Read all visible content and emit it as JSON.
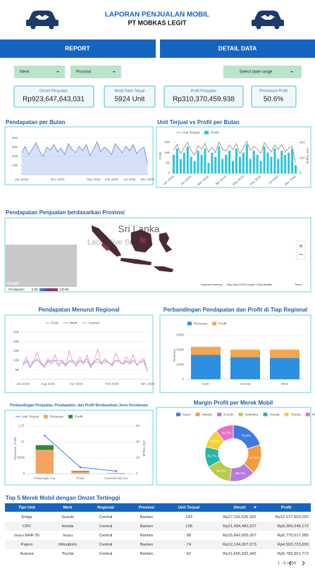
{
  "header": {
    "title": "LAPORAN PENJUALAN MOBIL",
    "subtitle": "PT MOBKAS LEGIT"
  },
  "tabs": [
    "REPORT",
    "DETAIL DATA"
  ],
  "filters": [
    "Merk",
    "Provinsi",
    "Select date range"
  ],
  "kpis": [
    {
      "label": "Omzet Penjualan",
      "value": "Rp923,647,643,031"
    },
    {
      "label": "Mobil Telah Terjual",
      "value": "5924 Unit"
    },
    {
      "label": "Profit Penjualan",
      "value": "Rp310,370,459,938"
    },
    {
      "label": "Persentase Profit",
      "value": "50.6%"
    }
  ],
  "map": {
    "title": "Pendapatan Penjualan berdasarkan Provinsi",
    "labels": [
      "Sri Lanka",
      "Laccadive Sea"
    ],
    "legend_label": "Pendapatan",
    "legend_min": "5.8B",
    "legend_max": "133.9B",
    "credits": [
      "Google",
      "Keyboard shortcuts",
      "Map Data ©2020 Google, TMap Mobility",
      "Terms"
    ]
  },
  "chart_data": [
    {
      "type": "area",
      "title": "Pendapatan per Bulan",
      "categories": [
        "Jan 2018",
        null,
        null,
        null,
        null,
        null,
        null,
        null,
        null,
        null,
        "Nov 2018",
        null,
        null,
        null,
        null,
        null,
        null,
        null,
        null,
        null,
        "Sep 2019",
        null,
        null,
        null,
        null,
        "Feb 2020",
        null,
        null,
        null,
        null,
        "Jul 2020",
        null,
        null,
        null,
        null,
        "Dec 2020"
      ],
      "values": [
        24,
        31,
        22,
        28,
        35,
        26,
        20,
        30,
        27,
        33,
        25,
        29,
        22,
        34,
        28,
        24,
        31,
        26,
        33,
        21,
        28,
        36,
        25,
        30,
        27,
        22,
        34,
        29,
        24,
        31,
        26,
        33,
        23,
        28,
        30,
        12
      ],
      "color": "#7b97ec",
      "ylim": [
        0,
        46
      ],
      "yticks": [
        {
          "value": 10,
          "label": "10B"
        },
        {
          "value": 20,
          "label": "20B"
        },
        {
          "value": 30,
          "label": "30B"
        },
        {
          "value": 40,
          "label": "40B"
        }
      ],
      "grid": true
    },
    {
      "type": "combo",
      "title": "Unit Terjual vs Profit per Bulan",
      "categories": [
        "Jan 2018",
        null,
        null,
        null,
        null,
        "Jun 2018",
        null,
        null,
        null,
        null,
        "Nov 2018",
        null,
        null,
        null,
        null,
        "Apr 2019",
        null,
        null,
        null,
        null,
        "Sep 2019",
        null,
        null,
        null,
        null,
        "Feb 2020",
        null,
        null,
        null,
        null,
        "Jul 2020",
        null,
        null,
        null,
        null,
        "Dec 2020"
      ],
      "series": [
        {
          "name": "Unit Terjual",
          "color": "#9e9e9e",
          "mark": "line",
          "axis": "y2",
          "values": [
            150,
            190,
            130,
            170,
            200,
            150,
            120,
            180,
            160,
            195,
            140,
            170,
            135,
            205,
            160,
            145,
            185,
            155,
            195,
            130,
            165,
            210,
            150,
            175,
            160,
            130,
            200,
            170,
            140,
            185,
            155,
            190,
            140,
            165,
            175,
            70
          ]
        },
        {
          "name": "Profit",
          "color": "#26c6da",
          "mark": "bar",
          "values": [
            9,
            12,
            7,
            10,
            13,
            8,
            6,
            11,
            9,
            12,
            5,
            10,
            8,
            13,
            7,
            9,
            11,
            6,
            12,
            8,
            10,
            14,
            7,
            11,
            9,
            6,
            13,
            10,
            8,
            12,
            7,
            11,
            9,
            10,
            12,
            4
          ]
        }
      ],
      "ylim": [
        0,
        17
      ],
      "yticks": [
        0,
        {
          "value": 5,
          "label": "5B"
        },
        {
          "value": 10,
          "label": "10B"
        },
        {
          "value": 15,
          "label": "15B"
        }
      ],
      "y2lim": [
        0,
        230
      ],
      "y2ticks": [
        0,
        100,
        200
      ],
      "ylabel": "Profit",
      "y2label": "Unit Terjual",
      "grid": true
    },
    {
      "type": "line",
      "title": "Pendapatan Menurut Regional",
      "categories": [
        "Jan 2018",
        null,
        null,
        null,
        null,
        null,
        null,
        "Aug 2018",
        null,
        null,
        null,
        null,
        null,
        null,
        null,
        "Apr 2019",
        null,
        null,
        null,
        null,
        null,
        null,
        null,
        null,
        null,
        "Feb 2020",
        null,
        null,
        null,
        null,
        null,
        null,
        null,
        null,
        null,
        "Dec 2020"
      ],
      "series": [
        {
          "name": "East",
          "color": "#ef8f9f",
          "values": [
            8,
            12,
            7,
            10,
            14,
            9,
            6,
            11,
            9,
            13,
            8,
            10,
            7,
            15,
            9,
            8,
            12,
            8,
            13,
            7,
            10,
            16,
            8,
            11,
            9,
            7,
            14,
            10,
            8,
            12,
            9,
            13,
            7,
            10,
            11,
            4
          ]
        },
        {
          "name": "West",
          "color": "#8f9fe0",
          "values": [
            7,
            10,
            6,
            9,
            11,
            8,
            7,
            10,
            8,
            10,
            7,
            9,
            7,
            10,
            9,
            7,
            10,
            9,
            11,
            6,
            9,
            11,
            8,
            9,
            9,
            7,
            10,
            9,
            8,
            10,
            8,
            10,
            8,
            9,
            10,
            4
          ]
        },
        {
          "name": "Central",
          "color": "#c992d8",
          "values": [
            9,
            9,
            9,
            9,
            10,
            9,
            7,
            9,
            10,
            10,
            10,
            10,
            8,
            9,
            10,
            9,
            9,
            9,
            9,
            8,
            9,
            9,
            9,
            10,
            9,
            8,
            10,
            10,
            8,
            9,
            9,
            10,
            8,
            9,
            9,
            4
          ]
        }
      ],
      "ylim": [
        0,
        27
      ],
      "yticks": [
        {
          "value": 5,
          "label": "5B"
        },
        {
          "value": 10,
          "label": "10B"
        },
        {
          "value": 15,
          "label": "15B"
        },
        {
          "value": 20,
          "label": "20B"
        },
        {
          "value": 25,
          "label": "25B"
        }
      ],
      "grid": true
    },
    {
      "type": "bar",
      "stacked": true,
      "title": "Perbandingan Pendapatan dan Profit di Tiap Regional",
      "categories": [
        "East",
        "Central",
        "West"
      ],
      "series": [
        {
          "name": "Revenue",
          "color": "#2d8fe0",
          "values": [
            330,
            300,
            290
          ]
        },
        {
          "name": "Profit",
          "color": "#f7a54a",
          "values": [
            110,
            100,
            110
          ]
        }
      ],
      "ylim": [
        0,
        650
      ],
      "yticks": [
        0,
        {
          "value": 200,
          "label": "200B"
        },
        {
          "value": 400,
          "label": "400B"
        },
        {
          "value": 600,
          "label": "600B"
        }
      ],
      "ylabel": "Revenue",
      "grid": true
    },
    {
      "type": "combo",
      "stacked": true,
      "title": "Perbandingan Penjualan, Pendapatan, dan Profit Berdasarkan Jenis Kendaraan",
      "categories": [
        "Passenger Car",
        "Truck",
        "Commercial Car"
      ],
      "series": [
        {
          "name": "Unit Terjual",
          "color": "#3f7fe0",
          "mark": "line",
          "axis": "y2",
          "values": [
            4800,
            800,
            324
          ]
        },
        {
          "name": "Revenue",
          "color": "#f4a460",
          "mark": "bar",
          "values": [
            750,
            70,
            15
          ]
        },
        {
          "name": "Profit",
          "color": "#2e8b3e",
          "mark": "bar",
          "values": [
            150,
            20,
            5
          ]
        }
      ],
      "ylim": [
        0,
        1600
      ],
      "yticks": [
        0,
        {
          "value": 500,
          "label": "500B"
        },
        {
          "value": 1000,
          "label": "1T"
        },
        {
          "value": 1500,
          "label": "1.5T"
        }
      ],
      "y2lim": [
        0,
        6400
      ],
      "y2ticks": [
        0,
        {
          "value": 2000,
          "label": "2K"
        },
        {
          "value": 4000,
          "label": "4K"
        },
        {
          "value": 6000,
          "label": "6K"
        }
      ],
      "ylabel": "Revenue, Profit",
      "y2label": "Unit Terjual",
      "grid": true
    },
    {
      "type": "donut",
      "title": "Margin Profit per Merek Mobil",
      "categories": [
        "Isuzu",
        "Nissan",
        "Suzuki",
        "Daihatsu",
        "Honda",
        "Toyota",
        "Mitsubishi"
      ],
      "values": [
        79.9,
        67.4,
        58.7,
        59.1,
        46.7,
        43.5,
        41.0
      ],
      "value_labels": [
        "79.9%",
        "67.4%",
        "58.7%",
        "59.1%",
        "46.7%",
        "43.5%",
        "41.0%"
      ],
      "colors": [
        "#3d7be0",
        "#f39c3c",
        "#b57be0",
        "#b8cc4a",
        "#26b5a8",
        "#f2d23a",
        "#e86fc2"
      ]
    }
  ],
  "table": {
    "title": "Top 5 Merek Mobil dengan Omzet Tertinggi",
    "headers": [
      "Tipe Unit",
      "Merk",
      "Regional",
      "Provinsi",
      "Unit Terjual",
      "Omzet",
      "Profit"
    ],
    "rows": [
      [
        "Ertiga",
        "Suzuki",
        "Central",
        "Banten",
        "143",
        "Rp27,116,525,932",
        "Rp12,127,503,025"
      ],
      [
        "CRV",
        "Honda",
        "Central",
        "Banten",
        "138",
        "Rp21,494,483,227",
        "Rp9,369,048,172"
      ],
      [
        "Isuzu NHR 55",
        "Isuzu",
        "Central",
        "Banten",
        "98",
        "Rp15,842,655,307",
        "Rp5,770,017,385"
      ],
      [
        "Pajero",
        "Mitsubishi",
        "Central",
        "Banten",
        "74",
        "Rp12,134,307,073",
        "Rp4,593,723,655"
      ],
      [
        "Avanza",
        "Toyota",
        "Central",
        "Banten",
        "62",
        "Rp11,666,932,342",
        "Rp5,783,901,772"
      ]
    ],
    "pager": "1 - 5 / 269"
  }
}
